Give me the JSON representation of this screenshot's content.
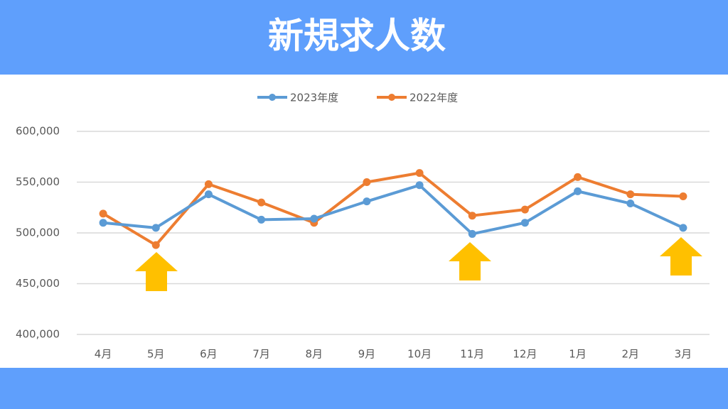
{
  "chart_data": {
    "type": "line",
    "title": "新規求人数",
    "categories": [
      "4月",
      "5月",
      "6月",
      "7月",
      "8月",
      "9月",
      "10月",
      "11月",
      "12月",
      "1月",
      "2月",
      "3月"
    ],
    "series": [
      {
        "name": "2023年度",
        "color": "#5b9bd5",
        "values": [
          510000,
          505000,
          538000,
          513000,
          514000,
          531000,
          547000,
          499000,
          510000,
          541000,
          529000,
          505000
        ]
      },
      {
        "name": "2022年度",
        "color": "#ed7d31",
        "values": [
          519000,
          488000,
          548000,
          530000,
          510000,
          550000,
          559000,
          517000,
          523000,
          555000,
          538000,
          536000
        ]
      }
    ],
    "ylim": [
      400000,
      600000
    ],
    "yticks": [
      {
        "value": 400000,
        "label": "400,000"
      },
      {
        "value": 450000,
        "label": "450,000"
      },
      {
        "value": 500000,
        "label": "500,000"
      },
      {
        "value": 550000,
        "label": "550,000"
      },
      {
        "value": 600000,
        "label": "600,000"
      }
    ],
    "grid": true,
    "legend": "top"
  }
}
